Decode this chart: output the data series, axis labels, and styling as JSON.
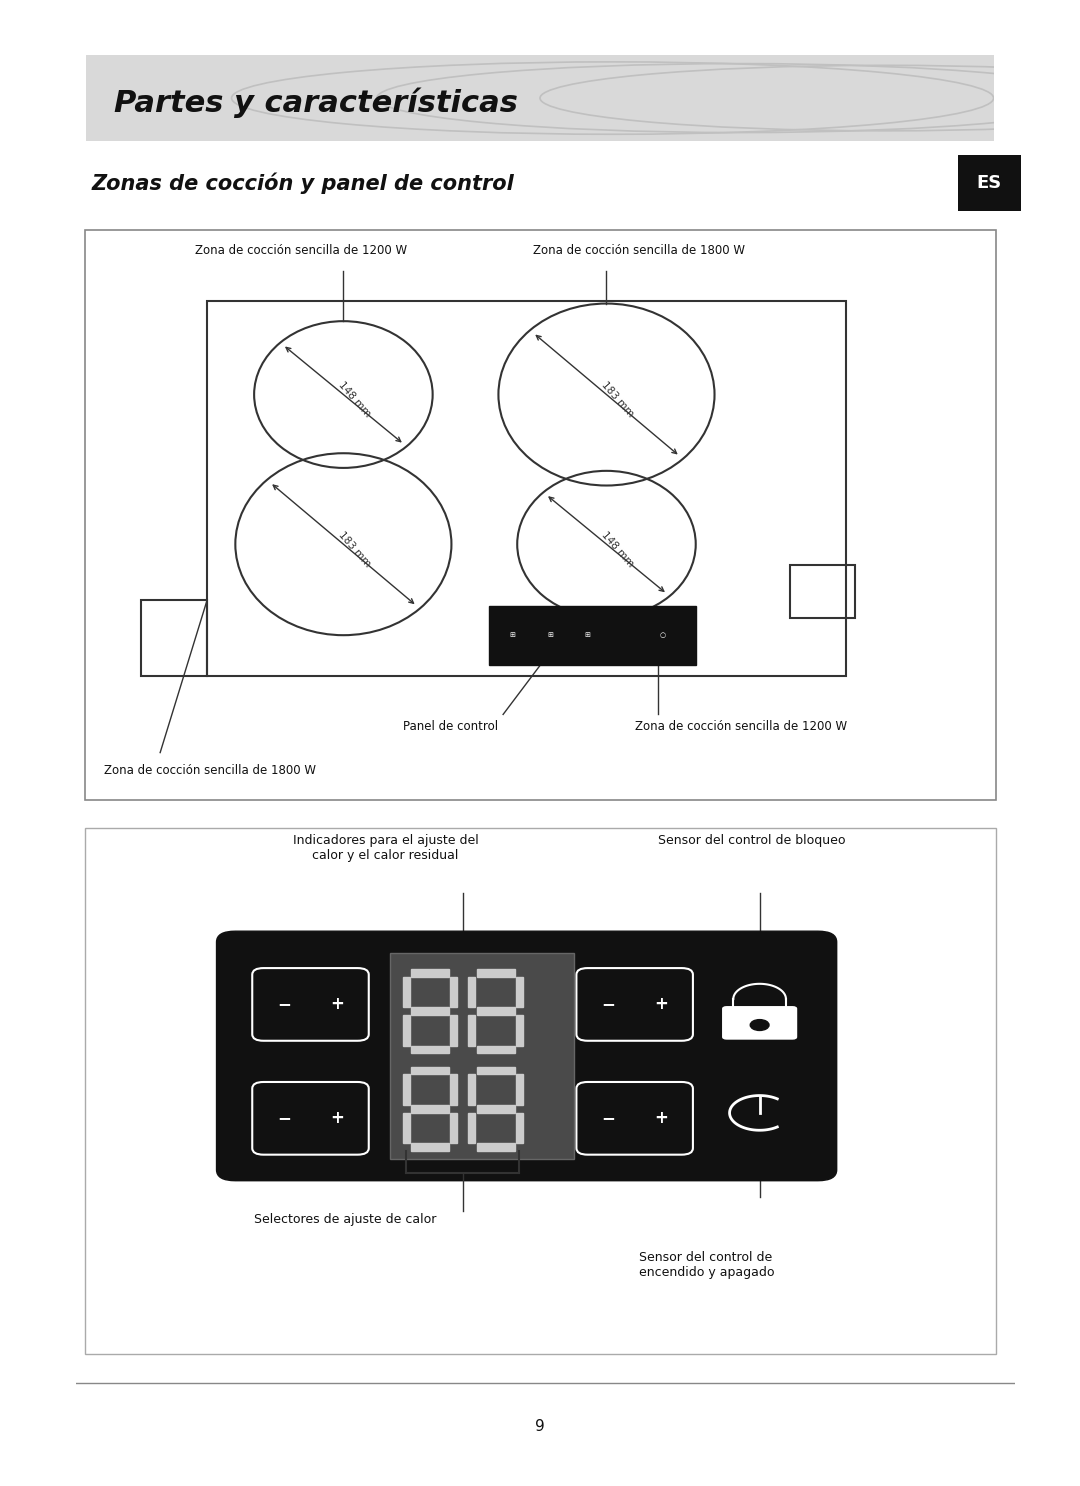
{
  "page_title": "Partes y características",
  "section_title": "Zonas de cocción y panel de control",
  "es_label": "ES",
  "background": "#ffffff",
  "header_bg": "#d9d9d9",
  "page_number": "9"
}
